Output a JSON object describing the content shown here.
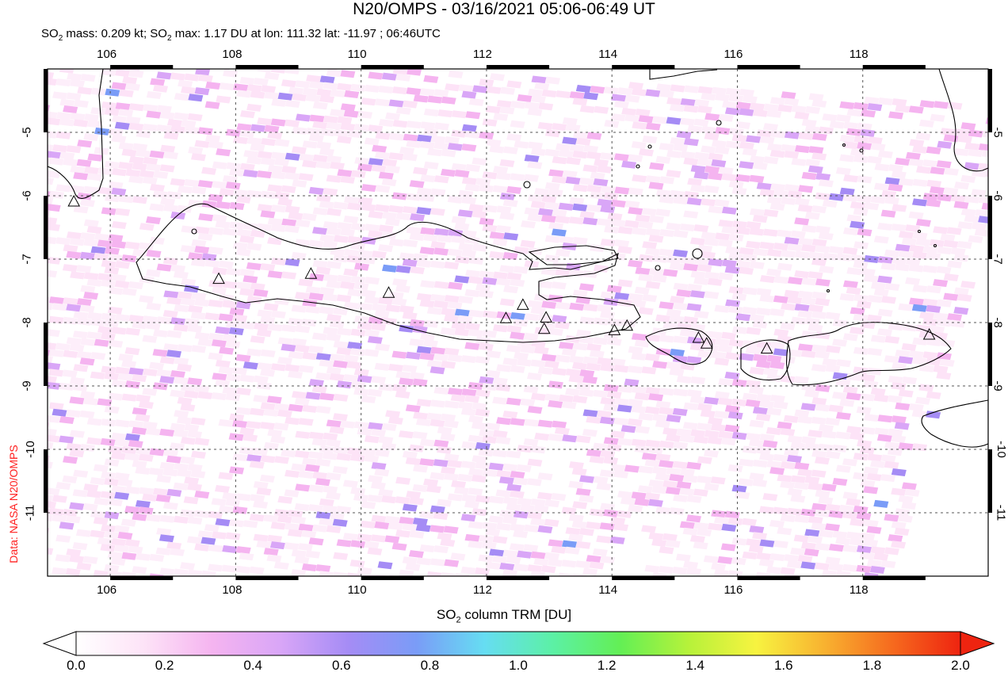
{
  "header": {
    "title": "N20/OMPS - 03/16/2021 05:06-06:49 UT",
    "subtitle_parts": [
      "SO",
      "2",
      " mass: 0.209 kt; SO",
      "2",
      " max: 1.17 DU at lon: 111.32 lat: -11.97 ; 06:46UTC"
    ]
  },
  "credit": "Data: NASA N20/OMPS",
  "map": {
    "lon_range": [
      105,
      120
    ],
    "lat_range": [
      -12.0,
      -4.0
    ],
    "x_ticks": [
      "106",
      "108",
      "110",
      "112",
      "114",
      "116",
      "118"
    ],
    "x_tick_values": [
      106,
      108,
      110,
      112,
      114,
      116,
      118
    ],
    "y_ticks": [
      "-5",
      "-6",
      "-7",
      "-8",
      "-9",
      "-10",
      "-11"
    ],
    "y_tick_values": [
      -5,
      -6,
      -7,
      -8,
      -9,
      -10,
      -11
    ],
    "grid": "dashed",
    "volcano_marker": "triangle",
    "volcanoes": [
      [
        107.73,
        -7.32
      ],
      [
        109.2,
        -7.24
      ],
      [
        110.44,
        -7.54
      ],
      [
        112.31,
        -7.94
      ],
      [
        112.58,
        -7.73
      ],
      [
        112.95,
        -7.93
      ],
      [
        112.92,
        -8.11
      ],
      [
        114.04,
        -8.13
      ],
      [
        114.24,
        -8.06
      ],
      [
        115.38,
        -8.25
      ],
      [
        115.51,
        -8.34
      ],
      [
        116.47,
        -8.42
      ],
      [
        119.06,
        -8.2
      ],
      [
        105.42,
        -6.1
      ]
    ]
  },
  "colorbar": {
    "title_parts": [
      "SO",
      "2",
      " column TRM [DU]"
    ],
    "labels": [
      "0.0",
      "0.2",
      "0.4",
      "0.6",
      "0.8",
      "1.0",
      "1.2",
      "1.4",
      "1.6",
      "1.8",
      "2.0"
    ],
    "range": [
      0.0,
      2.0
    ],
    "colors": [
      "#ffffff",
      "#fde3f7",
      "#f5b4f0",
      "#d9a6f7",
      "#a58cf5",
      "#7a9cf7",
      "#66ddf2",
      "#5cf0a6",
      "#63ef55",
      "#b6f23a",
      "#f7f340",
      "#f8b230",
      "#f66a1e",
      "#ee2410"
    ]
  }
}
